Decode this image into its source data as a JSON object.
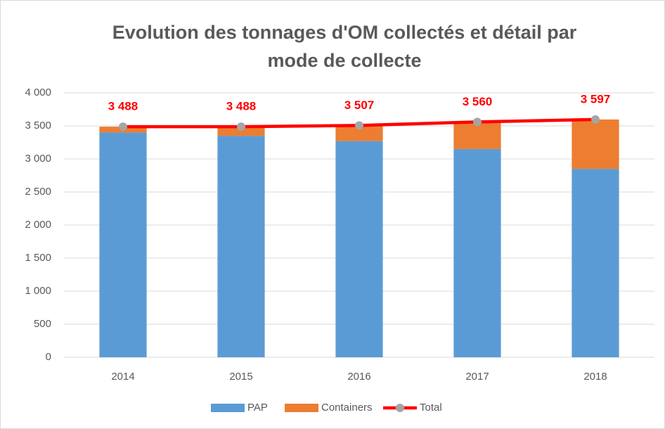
{
  "chart_data": {
    "type": "bar",
    "title": [
      "Evolution des tonnages d'OM collectés et détail par",
      "mode de collecte"
    ],
    "categories": [
      "2014",
      "2015",
      "2016",
      "2017",
      "2018"
    ],
    "series": [
      {
        "name": "PAP",
        "color": "#5b9bd5",
        "type": "bar",
        "values": [
          3400,
          3350,
          3270,
          3150,
          2850
        ]
      },
      {
        "name": "Containers",
        "color": "#ed7d31",
        "type": "bar",
        "values": [
          88,
          138,
          237,
          410,
          747
        ]
      },
      {
        "name": "Total",
        "color": "#ff0000",
        "marker_color": "#a5a5a5",
        "type": "line",
        "values": [
          3488,
          3488,
          3507,
          3560,
          3597
        ],
        "value_labels": [
          "3 488",
          "3 488",
          "3 507",
          "3 560",
          "3 597"
        ]
      }
    ],
    "ylim": [
      0,
      4000
    ],
    "yticks": [
      0,
      500,
      {
        "value": 1000,
        "label": "1 000"
      },
      {
        "value": 1500,
        "label": "1 500"
      },
      {
        "value": 2000,
        "label": "2 000"
      },
      {
        "value": 2500,
        "label": "2 500"
      },
      {
        "value": 3000,
        "label": "3 000"
      },
      {
        "value": 3500,
        "label": "3 500"
      },
      {
        "value": 4000,
        "label": "4 000"
      }
    ],
    "grid": true,
    "legend": "bottom"
  }
}
